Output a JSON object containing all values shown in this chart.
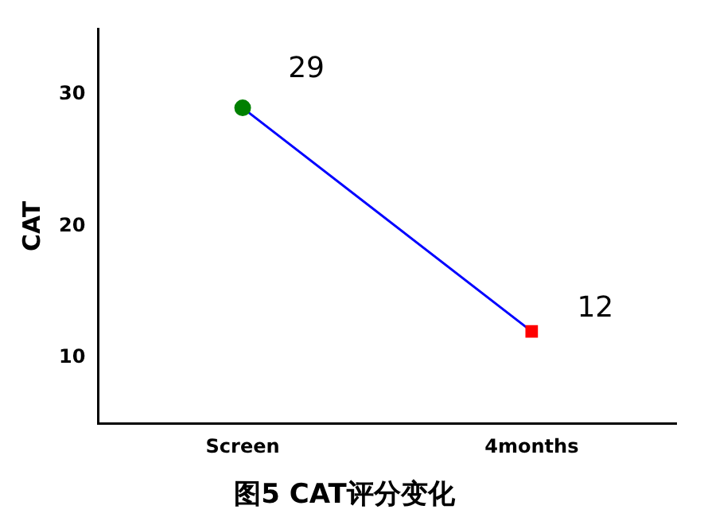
{
  "chart_data": {
    "type": "line",
    "title": "图5 CAT评分变化",
    "ylabel": "CAT",
    "categories": [
      "Screen",
      "4months"
    ],
    "series": [
      {
        "color": "#0000ff",
        "colors": [
          "#008000",
          "#ff0000"
        ],
        "values": [
          29,
          12
        ]
      }
    ],
    "marker": [
      "circle",
      "square"
    ],
    "ylim": [
      5,
      35
    ],
    "yticks": [
      10,
      20,
      30
    ],
    "grid": false,
    "legend": false,
    "data_labels": true
  }
}
